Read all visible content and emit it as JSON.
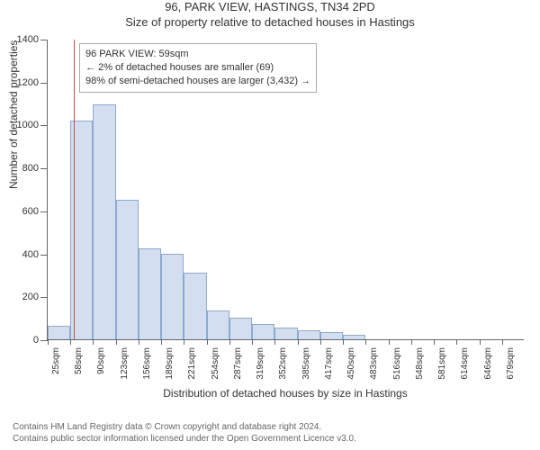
{
  "title": "96, PARK VIEW, HASTINGS, TN34 2PD",
  "subtitle": "Size of property relative to detached houses in Hastings",
  "ylabel": "Number of detached properties",
  "xlabel": "Distribution of detached houses by size in Hastings",
  "chart": {
    "type": "histogram",
    "ylim": [
      0,
      1400
    ],
    "ytick_step": 200,
    "xticks": [
      "25sqm",
      "58sqm",
      "90sqm",
      "123sqm",
      "156sqm",
      "189sqm",
      "221sqm",
      "254sqm",
      "287sqm",
      "319sqm",
      "352sqm",
      "385sqm",
      "417sqm",
      "450sqm",
      "483sqm",
      "516sqm",
      "548sqm",
      "581sqm",
      "614sqm",
      "646sqm",
      "679sqm"
    ],
    "values": [
      65,
      1020,
      1095,
      650,
      425,
      400,
      310,
      135,
      100,
      70,
      55,
      40,
      35,
      20,
      0,
      0,
      0,
      0,
      0,
      0,
      0
    ],
    "bar_fill": "#d3deef",
    "bar_stroke": "#8ea9d1",
    "marker_line_color": "#c8504e",
    "marker_bin_index": 1,
    "marker_line_offset": 0.15,
    "background_color": "#ffffff",
    "axis_color": "#666666",
    "tick_fontsize": 11,
    "xtick_fontsize": 10
  },
  "annotation": {
    "line1": "96 PARK VIEW: 59sqm",
    "line2": "← 2% of detached houses are smaller (69)",
    "line3": "98% of semi-detached houses are larger (3,432) →"
  },
  "footer": {
    "line1": "Contains HM Land Registry data © Crown copyright and database right 2024.",
    "line2": "Contains public sector information licensed under the Open Government Licence v3.0."
  }
}
